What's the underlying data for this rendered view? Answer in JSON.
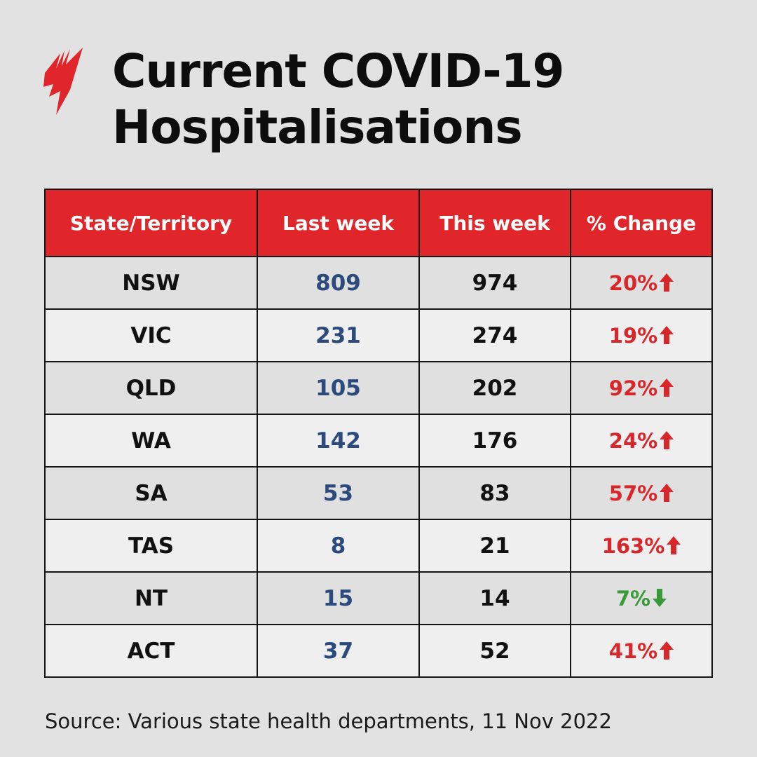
{
  "title_line1": "Current COVID-19",
  "title_line2": "Hospitalisations",
  "colors": {
    "header": "#e0262a",
    "increase": "#d8272b",
    "decrease": "#3a9a3a",
    "last_week_text": "#2c4a7c"
  },
  "chart_data": {
    "type": "table",
    "columns": [
      "State/Territory",
      "Last week",
      "This week",
      "% Change"
    ],
    "rows": [
      {
        "state": "NSW",
        "last": "809",
        "this": "974",
        "change": "20%",
        "direction": "up"
      },
      {
        "state": "VIC",
        "last": "231",
        "this": "274",
        "change": "19%",
        "direction": "up"
      },
      {
        "state": "QLD",
        "last": "105",
        "this": "202",
        "change": "92%",
        "direction": "up"
      },
      {
        "state": "WA",
        "last": "142",
        "this": "176",
        "change": "24%",
        "direction": "up"
      },
      {
        "state": "SA",
        "last": "53",
        "this": "83",
        "change": "57%",
        "direction": "up"
      },
      {
        "state": "TAS",
        "last": "8",
        "this": "21",
        "change": "163%",
        "direction": "up"
      },
      {
        "state": "NT",
        "last": "15",
        "this": "14",
        "change": "7%",
        "direction": "down"
      },
      {
        "state": "ACT",
        "last": "37",
        "this": "52",
        "change": "41%",
        "direction": "up"
      }
    ]
  },
  "source": "Source: Various state health departments, 11 Nov 2022"
}
